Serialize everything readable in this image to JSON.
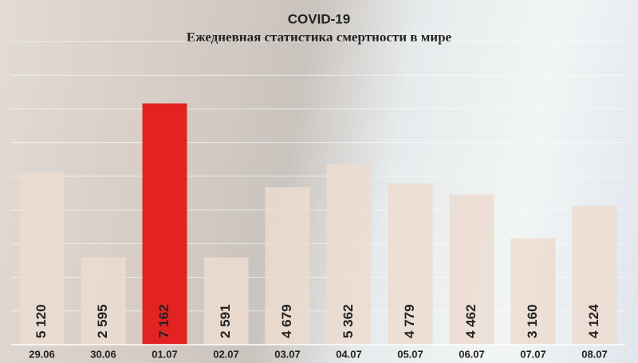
{
  "chart_data": {
    "type": "bar",
    "title": "COVID-19",
    "subtitle": "Ежедневная статистика смертности в мире",
    "categories": [
      "29.06",
      "30.06",
      "01.07",
      "02.07",
      "03.07",
      "04.07",
      "05.07",
      "06.07",
      "07.07",
      "08.07"
    ],
    "values": [
      5120,
      2595,
      7162,
      2591,
      4679,
      5362,
      4779,
      4462,
      3160,
      4124
    ],
    "value_labels": [
      "5 120",
      "2 595",
      "7 162",
      "2 591",
      "4 679",
      "5 362",
      "4 779",
      "4 462",
      "3 160",
      "4 124"
    ],
    "colors": [
      "#ecdcd0",
      "#ecdcd0",
      "#e32222",
      "#ecdcd0",
      "#ecdcd0",
      "#ecdcd0",
      "#ecdcd0",
      "#ecdcd0",
      "#ecdcd0",
      "#ecdcd0"
    ],
    "ylim": [
      0,
      9000
    ],
    "yticks": [
      0,
      1000,
      2000,
      3000,
      4000,
      5000,
      6000,
      7000,
      8000,
      9000
    ],
    "grid": true
  }
}
